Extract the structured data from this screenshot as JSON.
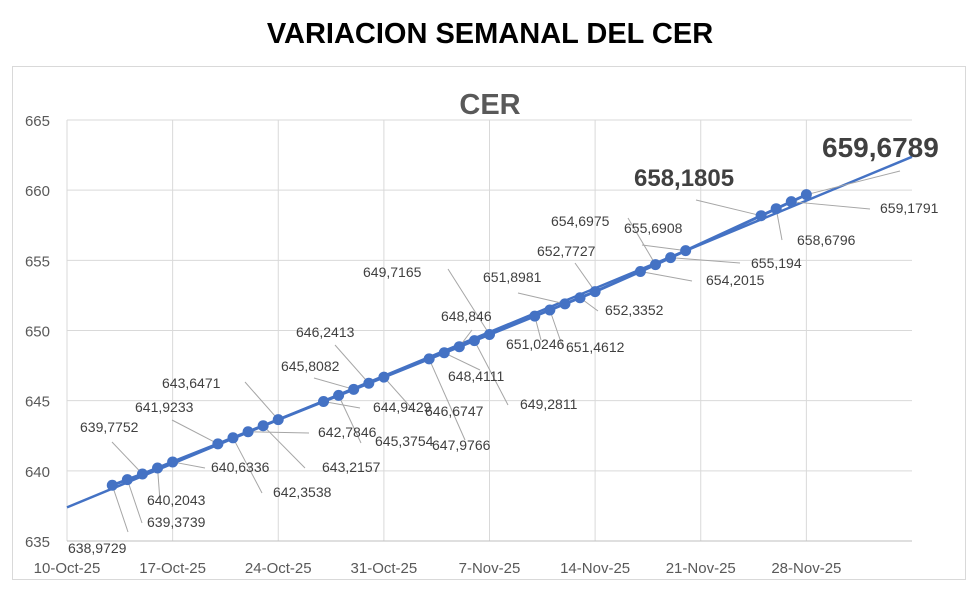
{
  "title": "VARIACION SEMANAL DEL CER",
  "chart_data": {
    "type": "line",
    "title": "CER",
    "xlabel": "",
    "ylabel": "",
    "ylim": [
      635,
      665
    ],
    "yticks": [
      635,
      640,
      645,
      650,
      655,
      660,
      665
    ],
    "xlim": [
      "2025-10-10",
      "2025-12-05"
    ],
    "xtick_labels": [
      "10-Oct-25",
      "17-Oct-25",
      "24-Oct-25",
      "31-Oct-25",
      "7-Nov-25",
      "14-Nov-25",
      "21-Nov-25",
      "28-Nov-25"
    ],
    "grid": true,
    "legend": "none",
    "series_color": "#4472C4",
    "trendline": true,
    "points": [
      {
        "date": "2025-10-13",
        "value": 638.9729,
        "label": "638,9729"
      },
      {
        "date": "2025-10-14",
        "value": 639.3739,
        "label": "639,3739"
      },
      {
        "date": "2025-10-15",
        "value": 639.7752,
        "label": "639,7752"
      },
      {
        "date": "2025-10-16",
        "value": 640.2043,
        "label": "640,2043"
      },
      {
        "date": "2025-10-17",
        "value": 640.6336,
        "label": "640,6336"
      },
      {
        "date": "2025-10-20",
        "value": 641.9233,
        "label": "641,9233"
      },
      {
        "date": "2025-10-21",
        "value": 642.3538,
        "label": "642,3538"
      },
      {
        "date": "2025-10-22",
        "value": 642.7846,
        "label": "642,7846"
      },
      {
        "date": "2025-10-23",
        "value": 643.2157,
        "label": "643,2157"
      },
      {
        "date": "2025-10-24",
        "value": 643.6471,
        "label": "643,6471"
      },
      {
        "date": "2025-10-27",
        "value": 644.9429,
        "label": "644,9429"
      },
      {
        "date": "2025-10-28",
        "value": 645.3754,
        "label": "645,3754"
      },
      {
        "date": "2025-10-29",
        "value": 645.8082,
        "label": "645,8082"
      },
      {
        "date": "2025-10-30",
        "value": 646.2413,
        "label": "646,2413"
      },
      {
        "date": "2025-10-31",
        "value": 646.6747,
        "label": "646,6747"
      },
      {
        "date": "2025-11-03",
        "value": 647.9766,
        "label": "647,9766"
      },
      {
        "date": "2025-11-04",
        "value": 648.4111,
        "label": "648,4111"
      },
      {
        "date": "2025-11-05",
        "value": 648.846,
        "label": "648,846"
      },
      {
        "date": "2025-11-06",
        "value": 649.2811,
        "label": "649,2811"
      },
      {
        "date": "2025-11-07",
        "value": 649.7165,
        "label": "649,7165"
      },
      {
        "date": "2025-11-10",
        "value": 651.0246,
        "label": "651,0246"
      },
      {
        "date": "2025-11-11",
        "value": 651.4612,
        "label": "651,4612"
      },
      {
        "date": "2025-11-12",
        "value": 651.8981,
        "label": "651,8981"
      },
      {
        "date": "2025-11-13",
        "value": 652.3352,
        "label": "652,3352"
      },
      {
        "date": "2025-11-14",
        "value": 652.7727,
        "label": "652,7727"
      },
      {
        "date": "2025-11-17",
        "value": 654.2015,
        "label": "654,2015"
      },
      {
        "date": "2025-11-18",
        "value": 654.6975,
        "label": "654,6975"
      },
      {
        "date": "2025-11-19",
        "value": 655.194,
        "label": "655,194"
      },
      {
        "date": "2025-11-20",
        "value": 655.6908,
        "label": "655,6908"
      },
      {
        "date": "2025-11-25",
        "value": 658.1805,
        "label": "658,1805"
      },
      {
        "date": "2025-11-26",
        "value": 658.6796,
        "label": "658,6796"
      },
      {
        "date": "2025-11-27",
        "value": 659.1791,
        "label": "659,1791"
      },
      {
        "date": "2025-11-28",
        "value": 659.6789,
        "label": "659,6789"
      }
    ]
  }
}
